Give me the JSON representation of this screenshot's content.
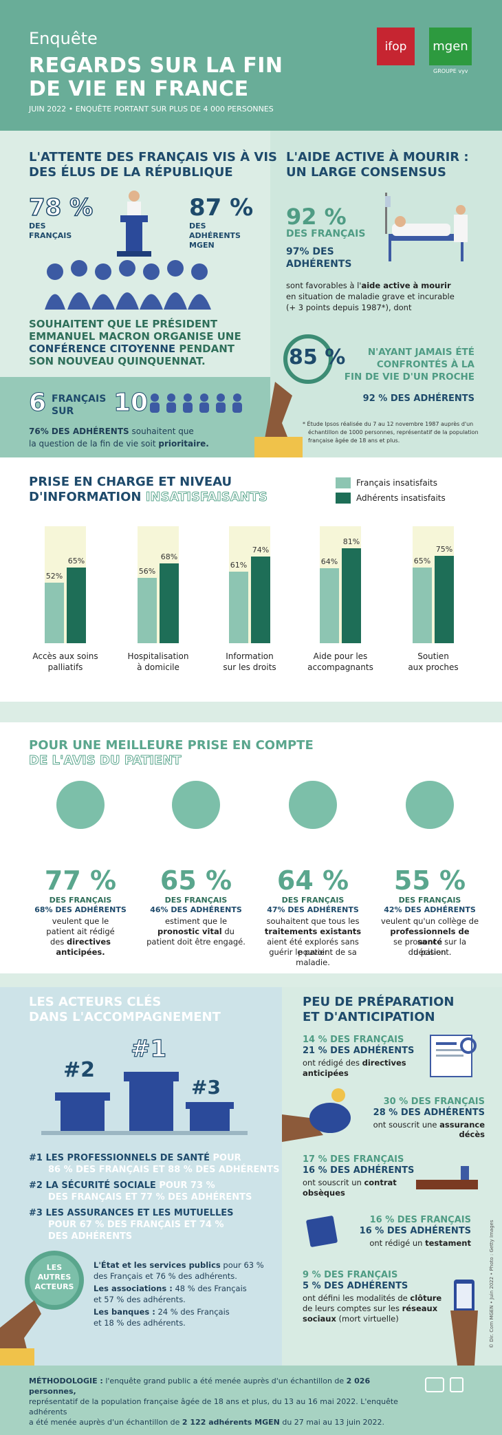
{
  "header": {
    "kicker": "Enquête",
    "title_line1": "REGARDS SUR LA FIN",
    "title_line2": "DE VIE EN FRANCE",
    "subtitle": "JUIN 2022 • ENQUÊTE PORTANT SUR PLUS DE 4 000 PERSONNES",
    "logo_ifop": "ifop",
    "logo_mgen": "mgen",
    "logo_mgen_sub": "GROUPE vyv"
  },
  "expectation": {
    "title_line1": "L'ATTENTE DES FRANÇAIS VIS À VIS",
    "title_line2": "DES ÉLUS DE LA RÉPUBLIQUE",
    "pct_fr": "78 %",
    "label_fr": "DES FRANÇAIS",
    "pct_ad": "87 %",
    "label_ad": "DES ADHÉRENTS MGEN",
    "text_line1": "SOUHAITENT QUE LE PRÉSIDENT",
    "text_line2": "EMMANUEL MACRON ORGANISE UNE",
    "text_line3a": "CONFÉRENCE CITOYENNE",
    "text_line3b": " PENDANT",
    "text_line4": "SON NOUVEAU QUINQUENNAT.",
    "six": "6",
    "francais": "FRANÇAIS",
    "sur": "SUR",
    "ten": "10",
    "adherents_pct": "76% DES ADHÉRENTS",
    "adherents_text1": " souhaitent que",
    "adherents_text2": "la question de la fin de vie soit ",
    "adherents_bold": "prioritaire."
  },
  "active_aid": {
    "title_line1": "L'AIDE ACTIVE À MOURIR :",
    "title_line2": "UN LARGE CONSENSUS",
    "pct_fr": "92 %",
    "label_fr": "DES FRANÇAIS",
    "pct_ad": "97% DES",
    "label_ad": "ADHÉRENTS",
    "text1": "sont favorables à l'",
    "text1_bold": "aide active à mourir",
    "text2": "en situation de maladie grave et incurable",
    "text3": "(+ 3 points depuis 1987*), dont",
    "pct_85": "85 %",
    "never_line1": "N'AYANT JAMAIS ÉTÉ",
    "never_line2": "CONFRONTÉS À LA",
    "never_line3": "FIN DE VIE D'UN PROCHE",
    "never_ad": "92 % DES ADHÉRENTS",
    "footnote1": "* Étude Ipsos réalisée du 7 au 12 novembre 1987 auprès d'un",
    "footnote2": "échantillon de 1000 personnes, représentatif de la population",
    "footnote3": "française âgée de 18 ans et plus."
  },
  "care": {
    "title_line1": "PRISE EN CHARGE ET NIVEAU",
    "title_line2a": "D'INFORMATION ",
    "title_line2b": "INSATISFAISANTS",
    "legend_fr": "Français insatisfaits",
    "legend_ad": "Adhérents insatisfaits",
    "color_fr": "#8dc5b2",
    "color_ad": "#1e6e57"
  },
  "chart_data": {
    "type": "bar",
    "categories": [
      "Accès aux soins palliatifs",
      "Hospitalisation à domicile",
      "Information sur les droits",
      "Aide pour les accompagnants",
      "Soutien aux proches"
    ],
    "category_lines": [
      [
        "Accès aux soins",
        "palliatifs"
      ],
      [
        "Hospitalisation",
        "à domicile"
      ],
      [
        "Information",
        "sur les droits"
      ],
      [
        "Aide pour les",
        "accompagnants"
      ],
      [
        "Soutien",
        "aux proches"
      ]
    ],
    "series": [
      {
        "name": "Français insatisfaits",
        "values": [
          52,
          56,
          61,
          64,
          65
        ],
        "labels": [
          "52%",
          "56%",
          "61%",
          "64%",
          "65%"
        ]
      },
      {
        "name": "Adhérents insatisfaits",
        "values": [
          65,
          68,
          74,
          81,
          75
        ],
        "labels": [
          "65%",
          "68%",
          "74%",
          "81%",
          "75%"
        ]
      }
    ],
    "ylim": [
      0,
      100
    ],
    "legend": "top-right"
  },
  "patient": {
    "title_line1": "POUR UNE MEILLEURE PRISE EN COMPTE",
    "title_line2": "DE L'AVIS DU PATIENT",
    "items": [
      {
        "pct": "77 %",
        "fr": "DES FRANÇAIS",
        "ad": "68% DES ADHÉRENTS",
        "t1": "veulent que le",
        "t2": "patient ait rédigé",
        "t3": "des ",
        "b1": "directives",
        "b2": "anticipées."
      },
      {
        "pct": "65 %",
        "fr": "DES FRANÇAIS",
        "ad": "46% DES ADHÉRENTS",
        "t1": "estiment que le",
        "b1": "pronostic vital",
        "t2": " du",
        "t3": "patient doit être engagé."
      },
      {
        "pct": "64 %",
        "fr": "DES FRANÇAIS",
        "ad": "47% DES ADHÉRENTS",
        "t1": "souhaitent que tous les",
        "b1": "traitements existants",
        "t2": "aient été explorés sans pouvoir",
        "t3": "guérir le patient de sa maladie."
      },
      {
        "pct": "55 %",
        "fr": "DES FRANÇAIS",
        "ad": "42% DES ADHÉRENTS",
        "t1": "veulent qu'un collège de",
        "b1": "professionnels de santé",
        "t2": "se prononce sur la décision",
        "t3": "du patient."
      }
    ]
  },
  "actors": {
    "title_line1": "LES ACTEURS CLÉS",
    "title_line2": "DANS L'ACCOMPAGNEMENT",
    "p1": "#1",
    "p2": "#2",
    "p3": "#3",
    "r1a": "#1 LES PROFESSIONNELS DE SANTÉ",
    "r1b": " POUR",
    "r1c": "86 % DES FRANÇAIS ET 88 % DES ADHÉRENTS",
    "r2a": "#2 LA SÉCURITÉ SOCIALE",
    "r2b": " POUR 73 %",
    "r2c": "DES FRANÇAIS ET 77 % DES ADHÉRENTS",
    "r3a": "#3 LES ASSURANCES ET LES MUTUELLES",
    "r3b": "POUR 67 % DES FRANÇAIS ET 74 %",
    "r3c": "DES ADHÉRENTS",
    "others_label1": "LES",
    "others_label2": "AUTRES",
    "others_label3": "ACTEURS",
    "o1b": "L'État et les services publics",
    "o1": " pour 63 %",
    "o1c": "des Français et 76 % des adhérents.",
    "o2b": "Les associations :",
    "o2": " 48 % des Français",
    "o2c": "et 57 % des adhérents.",
    "o3b": "Les banques :",
    "o3": " 24 % des Français",
    "o3c": "et 18 % des adhérents."
  },
  "prep": {
    "title_line1": "PEU DE PRÉPARATION",
    "title_line2": "ET D'ANTICIPATION",
    "items": [
      {
        "fr": "14 % DES FRANÇAIS",
        "ad": "21 % DES ADHÉRENTS",
        "t": "ont rédigé des ",
        "b": "directives",
        "b2": "anticipées"
      },
      {
        "fr": "30 % DES FRANÇAIS",
        "ad": "28 % DES ADHÉRENTS",
        "t": "ont souscrit une ",
        "b": "assurance décès",
        "b2": ""
      },
      {
        "fr": "17 % DES FRANÇAIS",
        "ad": "16 % DES ADHÉRENTS",
        "t": "ont souscrit un ",
        "b": "contrat",
        "b2": "obsèques"
      },
      {
        "fr": "16 % DES FRANÇAIS",
        "ad": "16 % DES ADHÉRENTS",
        "t": "ont rédigé un ",
        "b": "testament",
        "b2": ""
      },
      {
        "fr": "9 % DES FRANÇAIS",
        "ad": "5 % DES ADHÉRENTS",
        "t": "ont défini les modalités de ",
        "b": "clôture",
        "t2": "de leurs comptes sur les ",
        "b2": "réseaux",
        "b3": "sociaux",
        "t3": " (mort virtuelle)"
      }
    ],
    "credit": "© Dir. Com MGEN • Juin 2022 • Photo : Getty Images"
  },
  "method": {
    "label": "MÉTHODOLOGIE :",
    "t1": " l'enquête grand public a été menée auprès d'un échantillon de ",
    "b1": "2 026 personnes,",
    "t2": "représentatif de la population française âgée de 18 ans et plus, du 13 au 16 mai 2022. L'enquête adhérents",
    "t3": "a été menée auprès d'un échantillon de ",
    "b2": "2 122 adhérents MGEN",
    "t4": " du 27 mai au 13 juin 2022."
  }
}
